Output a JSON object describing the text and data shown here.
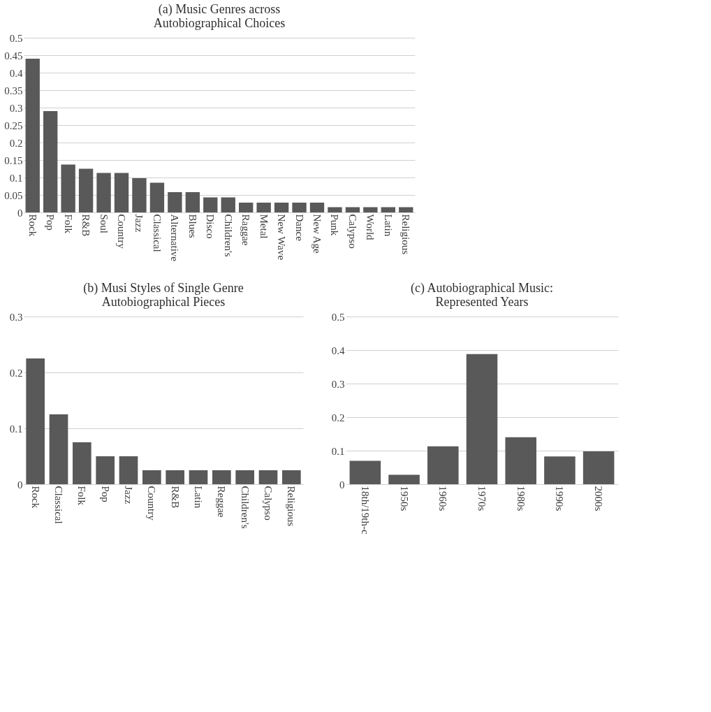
{
  "chart_data": [
    {
      "type": "bar",
      "title": "(a) Music Genres across\nAutobiographical Choices",
      "categories": [
        "Rock",
        "Pop",
        "Folk",
        "R&B",
        "Soul",
        "Country",
        "Jazz",
        "Classical",
        "Alternative",
        "Blues",
        "Disco",
        "Children's",
        "Raggae",
        "Metal",
        "New Wave",
        "Dance",
        "New Age",
        "Punk",
        "Calypso",
        "World",
        "Latin",
        "Religious"
      ],
      "values": [
        0.44,
        0.29,
        0.137,
        0.125,
        0.113,
        0.113,
        0.098,
        0.085,
        0.058,
        0.058,
        0.043,
        0.043,
        0.028,
        0.028,
        0.028,
        0.028,
        0.028,
        0.015,
        0.015,
        0.015,
        0.015,
        0.015
      ],
      "color": "#595959",
      "ylim": [
        0,
        0.5
      ],
      "yticks": [
        0,
        0.05,
        0.1,
        0.15,
        0.2,
        0.25,
        0.3,
        0.35,
        0.4,
        0.45,
        0.5
      ],
      "grid": "y"
    },
    {
      "type": "bar",
      "title": "(b) Musi Styles of Single Genre\nAutobiographical Pieces",
      "categories": [
        "Rock",
        "Classical",
        "Folk",
        "Pop",
        "Jazz",
        "Country",
        "R&B",
        "Latin",
        "Reggae",
        "Children's",
        "Calypso",
        "Religious"
      ],
      "values": [
        0.225,
        0.125,
        0.075,
        0.05,
        0.05,
        0.025,
        0.025,
        0.025,
        0.025,
        0.025,
        0.025,
        0.025
      ],
      "color": "#595959",
      "ylim": [
        0,
        0.3
      ],
      "yticks": [
        0,
        0.1,
        0.2,
        0.3
      ],
      "grid": "y"
    },
    {
      "type": "bar",
      "title": "(c) Autobiographical Music:\nRepresented Years",
      "categories": [
        "18th/19th-c",
        "1950s",
        "1960s",
        "1970s",
        "1980s",
        "1990s",
        "2000s"
      ],
      "values": [
        0.07,
        0.028,
        0.113,
        0.388,
        0.14,
        0.083,
        0.098
      ],
      "color": "#595959",
      "ylim": [
        0,
        0.5
      ],
      "yticks": [
        0,
        0.1,
        0.2,
        0.3,
        0.4,
        0.5
      ],
      "grid": "y"
    }
  ]
}
